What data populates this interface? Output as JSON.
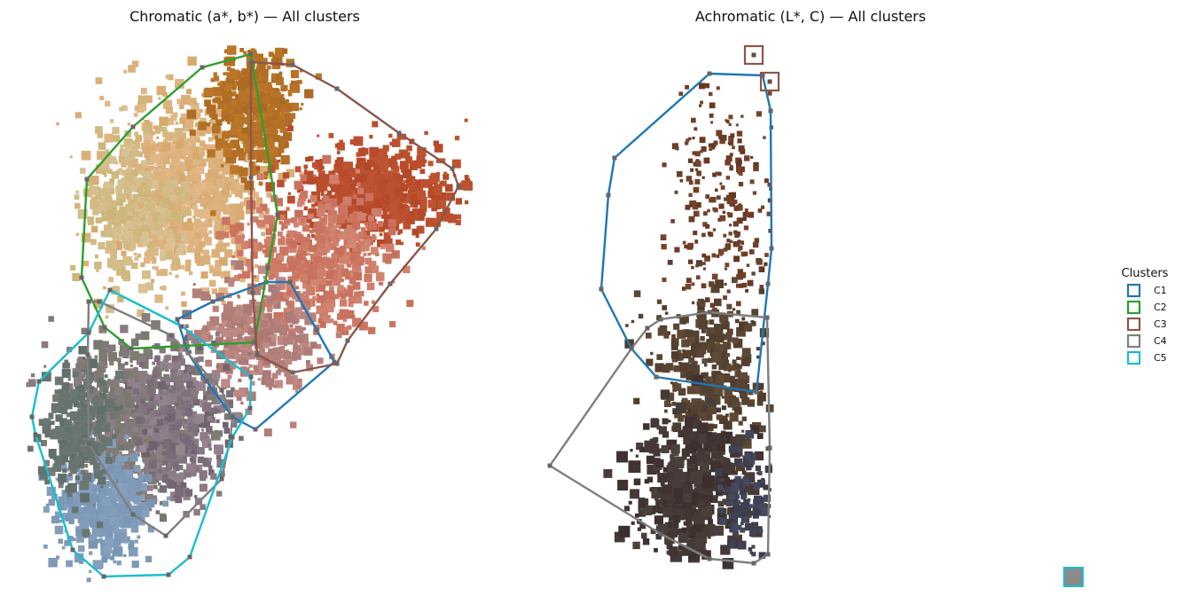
{
  "chart_data": [
    {
      "type": "scatter",
      "title": "Chromatic (a*, b*) — All clusters",
      "axes_visible": false,
      "clusters": [
        {
          "name": "C1",
          "color": "#1f77b4",
          "hull": [
            [
              200,
              360
            ],
            [
              240,
              340
            ],
            [
              300,
              318
            ],
            [
              327,
              318
            ],
            [
              357,
              372
            ],
            [
              377,
              408
            ],
            [
              288,
              484
            ],
            [
              262,
              470
            ],
            [
              233,
              430
            ],
            [
              212,
              398
            ]
          ]
        },
        {
          "name": "C2",
          "color": "#2ca02c",
          "hull": [
            [
              98,
              202
            ],
            [
              150,
              143
            ],
            [
              228,
              76
            ],
            [
              283,
              61
            ],
            [
              313,
              242
            ],
            [
              302,
              302
            ],
            [
              287,
              386
            ],
            [
              148,
              393
            ],
            [
              118,
              369
            ],
            [
              92,
              313
            ]
          ]
        },
        {
          "name": "C3",
          "color": "#8c564b",
          "hull": [
            [
              283,
              70
            ],
            [
              330,
              73
            ],
            [
              380,
              100
            ],
            [
              450,
              150
            ],
            [
              510,
              190
            ],
            [
              517,
              210
            ],
            [
              492,
              258
            ],
            [
              440,
              320
            ],
            [
              392,
              384
            ],
            [
              380,
              410
            ],
            [
              330,
              420
            ],
            [
              290,
              400
            ],
            [
              285,
              330
            ],
            [
              283,
              200
            ]
          ]
        },
        {
          "name": "C4",
          "color": "#7f7f7f",
          "hull": [
            [
              100,
              340
            ],
            [
              112,
              340
            ],
            [
              193,
              378
            ],
            [
              250,
              440
            ],
            [
              262,
              470
            ],
            [
              260,
              492
            ],
            [
              250,
              540
            ],
            [
              187,
              604
            ],
            [
              150,
              580
            ],
            [
              100,
              500
            ],
            [
              99,
              400
            ]
          ]
        },
        {
          "name": "C5",
          "color": "#17becf",
          "hull": [
            [
              124,
              327
            ],
            [
              205,
              368
            ],
            [
              283,
              425
            ],
            [
              282,
              460
            ],
            [
              262,
              493
            ],
            [
              214,
              628
            ],
            [
              190,
              648
            ],
            [
              117,
              650
            ],
            [
              82,
              620
            ],
            [
              40,
              490
            ],
            [
              36,
              470
            ],
            [
              44,
              430
            ],
            [
              100,
              375
            ]
          ]
        }
      ]
    },
    {
      "type": "scatter",
      "title": "Achromatic (L*, C) — All clusters",
      "axes_visible": false,
      "clusters": [
        {
          "name": "C1",
          "color": "#1f77b4",
          "hull": [
            [
              800,
              83
            ],
            [
              860,
              85
            ],
            [
              869,
              125
            ],
            [
              870,
              280
            ],
            [
              866,
              320
            ],
            [
              853,
              442
            ],
            [
              740,
              425
            ],
            [
              712,
              393
            ],
            [
              678,
              326
            ],
            [
              686,
              220
            ],
            [
              693,
              178
            ]
          ]
        },
        {
          "name": "C3",
          "color": "#8c564b",
          "hull": [
            [
              850,
              62
            ],
            [
              868,
              92
            ]
          ]
        },
        {
          "name": "C4",
          "color": "#7f7f7f",
          "hull": [
            [
              745,
              360
            ],
            [
              800,
              352
            ],
            [
              865,
              358
            ],
            [
              868,
              505
            ],
            [
              866,
              625
            ],
            [
              850,
              635
            ],
            [
              800,
              630
            ],
            [
              745,
              602
            ],
            [
              620,
              525
            ],
            [
              712,
              393
            ],
            [
              730,
              370
            ]
          ]
        }
      ]
    }
  ],
  "legend": {
    "title": "Clusters",
    "items": [
      {
        "label": "C1",
        "color": "#1f77b4"
      },
      {
        "label": "C2",
        "color": "#2ca02c"
      },
      {
        "label": "C3",
        "color": "#8c564b"
      },
      {
        "label": "C4",
        "color": "#7f7f7f"
      },
      {
        "label": "C5",
        "color": "#17becf"
      }
    ]
  }
}
